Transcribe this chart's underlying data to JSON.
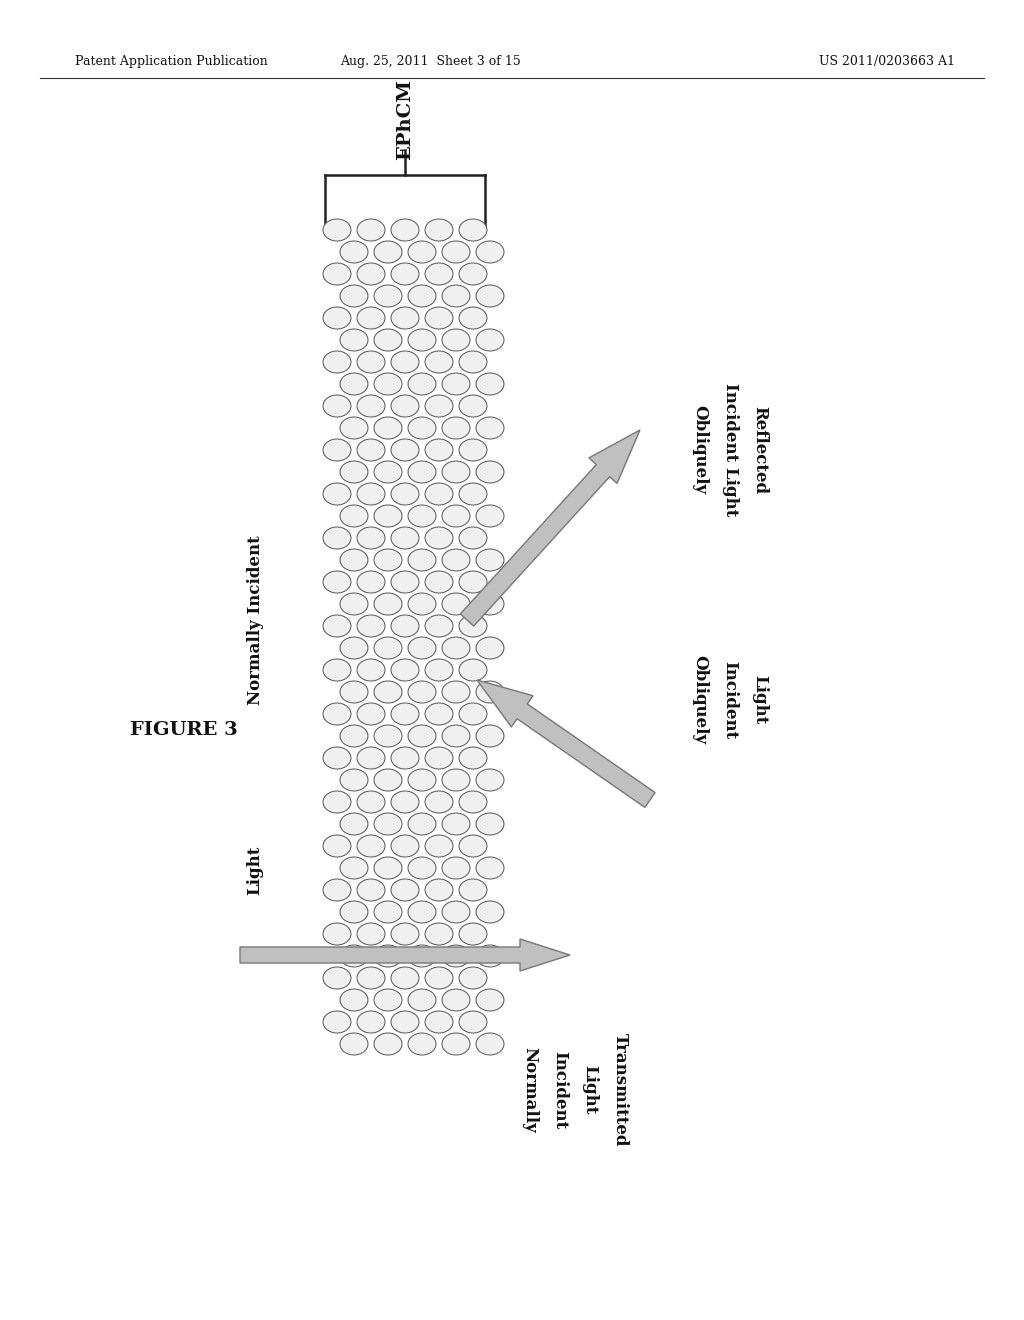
{
  "bg_color": "#ffffff",
  "header_left": "Patent Application Publication",
  "header_center": "Aug. 25, 2011  Sheet 3 of 15",
  "header_right": "US 2011/0203663 A1",
  "figure_label": "FIGURE 3",
  "ephcm_label": "EPhCM",
  "arrow_fill": "#aaaaaa",
  "arrow_edge": "#555555",
  "circle_fill": "#f0f0f0",
  "circle_edge": "#555555",
  "text_color": "#111111"
}
